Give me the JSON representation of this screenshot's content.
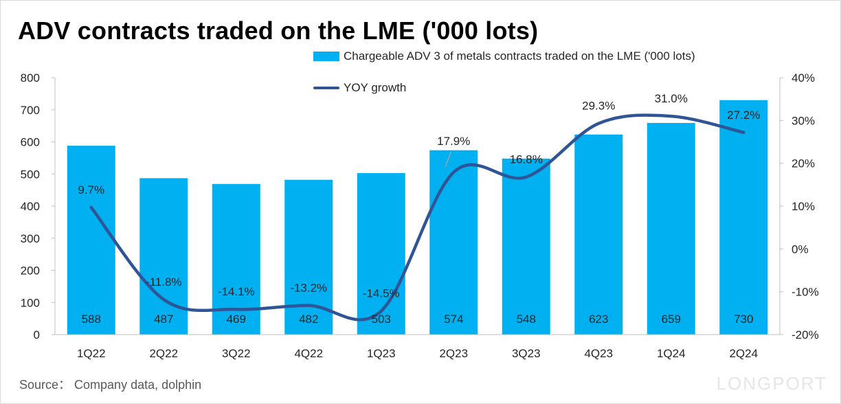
{
  "title": "ADV contracts traded on the LME ('000 lots)",
  "source": "Source： Company data, dolphin",
  "watermark": "LONGPORT",
  "colors": {
    "bar": "#00b0f0",
    "line": "#2f5597",
    "axis": "#bfbfbf"
  },
  "chart_data": {
    "type": "bar+line",
    "title": "ADV contracts traded on the LME ('000 lots)",
    "categories": [
      "1Q22",
      "2Q22",
      "3Q22",
      "4Q22",
      "1Q23",
      "2Q23",
      "3Q23",
      "4Q23",
      "1Q24",
      "2Q24"
    ],
    "series": [
      {
        "name": "Chargeable ADV 3 of metals contracts traded on the LME ('000 lots)",
        "type": "bar",
        "axis": "left",
        "values": [
          588,
          487,
          469,
          482,
          503,
          574,
          548,
          623,
          659,
          730
        ],
        "labels": [
          "588",
          "487",
          "469",
          "482",
          "503",
          "574",
          "548",
          "623",
          "659",
          "730"
        ]
      },
      {
        "name": "YOY growth",
        "type": "line",
        "axis": "right",
        "values": [
          9.7,
          -11.8,
          -14.1,
          -13.2,
          -14.5,
          17.9,
          16.8,
          29.3,
          31.0,
          27.2
        ],
        "labels": [
          "9.7%",
          "-11.8%",
          "-14.1%",
          "-13.2%",
          "-14.5%",
          "17.9%",
          "16.8%",
          "29.3%",
          "31.0%",
          "27.2%"
        ]
      }
    ],
    "y_left": {
      "min": 0,
      "max": 800,
      "ticks": [
        "0",
        "100",
        "200",
        "300",
        "400",
        "500",
        "600",
        "700",
        "800"
      ]
    },
    "y_right": {
      "min": -20,
      "max": 40,
      "ticks": [
        "-20%",
        "-10%",
        "0%",
        "10%",
        "20%",
        "30%",
        "40%"
      ]
    },
    "legend": "top-right"
  }
}
